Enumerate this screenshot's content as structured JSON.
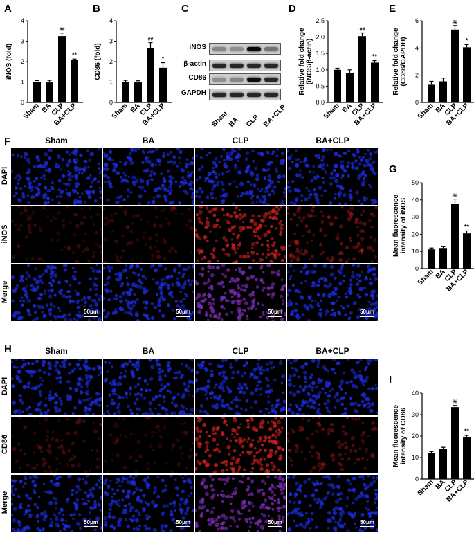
{
  "panels": {
    "a": "A",
    "b": "B",
    "c": "C",
    "d": "D",
    "e": "E",
    "f": "F",
    "g": "G",
    "h": "H",
    "i": "I"
  },
  "chart_data": [
    {
      "id": "A",
      "type": "bar",
      "categories": [
        "Sham",
        "BA",
        "CLP",
        "BA+CLP"
      ],
      "values": [
        1.0,
        0.98,
        3.25,
        2.08
      ],
      "errors": [
        0.07,
        0.1,
        0.15,
        0.05
      ],
      "annotations": [
        "",
        "",
        "##",
        "**"
      ],
      "ylabel": "iNOS (fold)",
      "ylim": [
        0,
        4
      ],
      "yticks": [
        0,
        1,
        2,
        3,
        4
      ]
    },
    {
      "id": "B",
      "type": "bar",
      "categories": [
        "Sham",
        "BA",
        "CLP",
        "BA+CLP"
      ],
      "values": [
        1.0,
        0.98,
        2.65,
        1.7
      ],
      "errors": [
        0.08,
        0.08,
        0.28,
        0.25
      ],
      "annotations": [
        "",
        "",
        "##",
        "*"
      ],
      "ylabel": "CD86 (fold)",
      "ylim": [
        0,
        4
      ],
      "yticks": [
        0,
        1,
        2,
        3,
        4
      ]
    },
    {
      "id": "D",
      "type": "bar",
      "categories": [
        "Sham",
        "BA",
        "CLP",
        "BA+CLP"
      ],
      "values": [
        1.0,
        0.9,
        2.03,
        1.22
      ],
      "errors": [
        0.05,
        0.1,
        0.1,
        0.06
      ],
      "annotations": [
        "",
        "",
        "##",
        "**"
      ],
      "ylabel": "Relative fold change\n(iNOS/β-actin)",
      "ylim": [
        0,
        2.5
      ],
      "yticks": [
        0.0,
        0.5,
        1.0,
        1.5,
        2.0,
        2.5
      ]
    },
    {
      "id": "E",
      "type": "bar",
      "categories": [
        "Sham",
        "BA",
        "CLP",
        "BA+CLP"
      ],
      "values": [
        1.3,
        1.55,
        5.35,
        4.05
      ],
      "errors": [
        0.25,
        0.25,
        0.3,
        0.2
      ],
      "annotations": [
        "",
        "",
        "##",
        "*"
      ],
      "ylabel": "Relative fold change\n(CD86/GAPDH)",
      "ylim": [
        0,
        6
      ],
      "yticks": [
        0,
        2,
        4,
        6
      ]
    },
    {
      "id": "G",
      "type": "bar",
      "categories": [
        "Sham",
        "BA",
        "CLP",
        "BA+CLP"
      ],
      "values": [
        11.2,
        12.0,
        37.5,
        20.5
      ],
      "errors": [
        0.8,
        0.8,
        3.0,
        1.5
      ],
      "annotations": [
        "",
        "",
        "##",
        "**"
      ],
      "ylabel": "Mean fluorescence\nintensity of iNOS",
      "ylim": [
        0,
        50
      ],
      "yticks": [
        0,
        10,
        20,
        30,
        40,
        50
      ]
    },
    {
      "id": "I",
      "type": "bar",
      "categories": [
        "Sham",
        "BA",
        "CLP",
        "BA+CLP"
      ],
      "values": [
        12.0,
        14.0,
        33.5,
        19.5
      ],
      "errors": [
        0.8,
        0.8,
        0.8,
        0.8
      ],
      "annotations": [
        "",
        "",
        "##",
        "**"
      ],
      "ylabel": "Mean fluorescence\nintensity of CD86",
      "ylim": [
        0,
        40
      ],
      "yticks": [
        0,
        10,
        20,
        30,
        40
      ]
    }
  ],
  "blot": {
    "rows": [
      "iNOS",
      "β-actin",
      "CD86",
      "GAPDH"
    ],
    "lanes": [
      "Sham",
      "BA",
      "CLP",
      "BA+CLP"
    ],
    "intensity": [
      [
        0.35,
        0.3,
        1.0,
        0.45
      ],
      [
        0.85,
        0.85,
        0.85,
        0.85
      ],
      [
        0.3,
        0.35,
        1.0,
        0.85
      ],
      [
        0.85,
        0.85,
        0.85,
        0.85
      ]
    ]
  },
  "micrographs": {
    "columns": [
      "Sham",
      "BA",
      "CLP",
      "BA+CLP"
    ],
    "rows_f": [
      "DAPI",
      "iNOS",
      "Merge"
    ],
    "rows_h": [
      "DAPI",
      "CD86",
      "Merge"
    ],
    "scale_label": "50μm",
    "colors": {
      "dapi": "#1a2bd9",
      "red": "#c81e1e",
      "merge": "#7a2ab0",
      "background": "#000000"
    }
  }
}
